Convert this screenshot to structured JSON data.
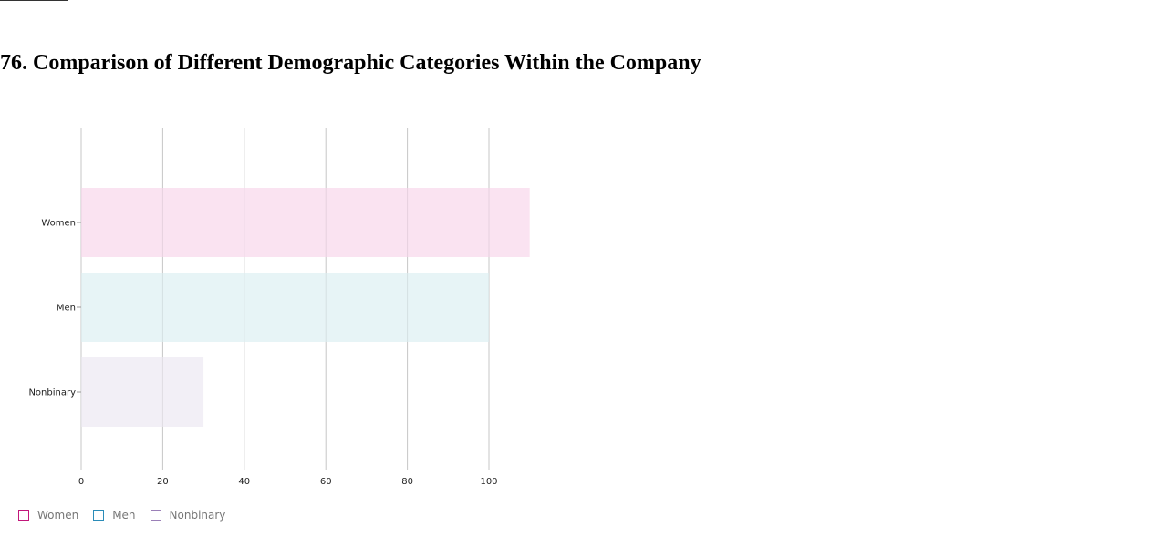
{
  "page": {
    "title": "76. Comparison of Different Demographic Categories Within the Company"
  },
  "chart_data": {
    "type": "bar",
    "orientation": "horizontal",
    "title": "76. Comparison of Different Demographic Categories Within the Company",
    "xlabel": "",
    "ylabel": "",
    "categories": [
      "Women",
      "Men",
      "Nonbinary"
    ],
    "values": [
      110,
      100,
      30
    ],
    "xlim": [
      0,
      110
    ],
    "xticks": [
      "0",
      "20",
      "40",
      "60",
      "80",
      "100"
    ],
    "grid": "vertical",
    "legend": {
      "placement": "bottom-left",
      "items": [
        {
          "label": "Women",
          "border_color": "#c2177a"
        },
        {
          "label": "Men",
          "border_color": "#2b8cb8"
        },
        {
          "label": "Nonbinary",
          "border_color": "#9b80b8"
        }
      ]
    },
    "bar_colors": [
      "#fae3f1",
      "#e7f4f6",
      "#f2eff6"
    ]
  }
}
